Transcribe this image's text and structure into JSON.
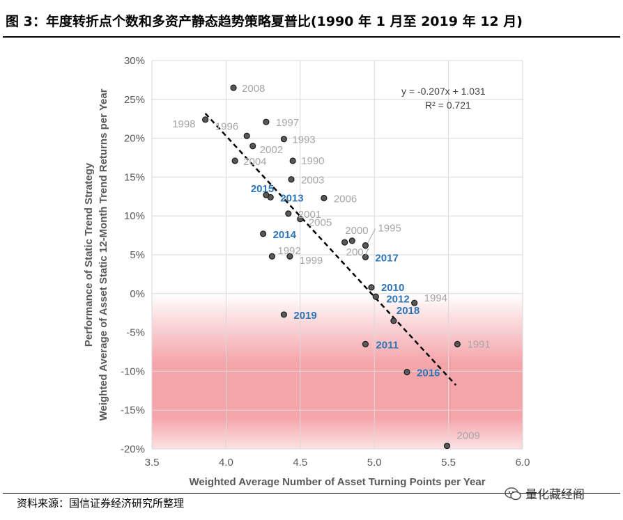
{
  "figure": {
    "title": "图 3：年度转折点个数和多资产静态趋势策略夏普比(1990 年 1 月至 2019 年 12 月)",
    "source": "资料来源：国信证券经济研究所整理",
    "watermark": "量化藏经阁"
  },
  "chart_data": {
    "type": "scatter",
    "title": "",
    "xlabel": "Weighted Average Number of Asset Turning Points per Year",
    "ylabel_lines": [
      "Performance of Static Trend Strategy",
      "Weighted Average of Asset Static 12-Month Trend Returns per Year"
    ],
    "xlim": [
      3.5,
      6.0
    ],
    "ylim": [
      -20,
      30
    ],
    "xticks": [
      3.5,
      4.0,
      4.5,
      5.0,
      5.5,
      6.0
    ],
    "xtick_labels": [
      "3.5",
      "4.0",
      "4.5",
      "5.0",
      "5.5",
      "6.0"
    ],
    "yticks": [
      30,
      25,
      20,
      15,
      10,
      5,
      0,
      -5,
      -10,
      -15,
      -20
    ],
    "ytick_labels": [
      "30%",
      "25%",
      "20%",
      "15%",
      "10%",
      "5%",
      "0%",
      "-5%",
      "-10%",
      "-15%",
      "-20%"
    ],
    "grid": true,
    "trendline": {
      "equation": "y = -0.207x + 1.031",
      "r2": "R² = 0.721",
      "x_start": 3.86,
      "x_end": 5.55,
      "slope": -0.207,
      "intercept": 1.031
    },
    "points": [
      {
        "label": "1990",
        "x": 4.45,
        "y": 17.1,
        "highlight": false
      },
      {
        "label": "1991",
        "x": 5.56,
        "y": -6.5,
        "highlight": false
      },
      {
        "label": "1992",
        "x": 4.31,
        "y": 4.8,
        "highlight": false
      },
      {
        "label": "1993",
        "x": 4.39,
        "y": 19.9,
        "highlight": false
      },
      {
        "label": "1994",
        "x": 5.27,
        "y": -1.2,
        "highlight": false
      },
      {
        "label": "1995",
        "x": 4.94,
        "y": 6.2,
        "highlight": false
      },
      {
        "label": "1996",
        "x": 4.14,
        "y": 20.3,
        "highlight": false
      },
      {
        "label": "1997",
        "x": 4.27,
        "y": 22.1,
        "highlight": false
      },
      {
        "label": "1998",
        "x": 3.86,
        "y": 22.4,
        "highlight": false
      },
      {
        "label": "1999",
        "x": 4.43,
        "y": 4.8,
        "highlight": false
      },
      {
        "label": "2000",
        "x": 4.85,
        "y": 6.8,
        "highlight": false
      },
      {
        "label": "2001",
        "x": 4.42,
        "y": 10.3,
        "highlight": false
      },
      {
        "label": "2002",
        "x": 4.18,
        "y": 19.0,
        "highlight": false
      },
      {
        "label": "2003",
        "x": 4.44,
        "y": 14.7,
        "highlight": false
      },
      {
        "label": "2004",
        "x": 4.06,
        "y": 17.1,
        "highlight": false
      },
      {
        "label": "2005",
        "x": 4.5,
        "y": 9.6,
        "highlight": false
      },
      {
        "label": "2006",
        "x": 4.66,
        "y": 12.3,
        "highlight": false
      },
      {
        "label": "2007",
        "x": 4.8,
        "y": 6.6,
        "highlight": false
      },
      {
        "label": "2008",
        "x": 4.05,
        "y": 26.5,
        "highlight": false
      },
      {
        "label": "2009",
        "x": 5.49,
        "y": -19.6,
        "highlight": false
      },
      {
        "label": "2010",
        "x": 4.98,
        "y": 0.8,
        "highlight": true
      },
      {
        "label": "2011",
        "x": 4.94,
        "y": -6.5,
        "highlight": true
      },
      {
        "label": "2012",
        "x": 5.01,
        "y": -0.4,
        "highlight": true
      },
      {
        "label": "2013",
        "x": 4.3,
        "y": 12.4,
        "highlight": true
      },
      {
        "label": "2014",
        "x": 4.25,
        "y": 7.7,
        "highlight": true
      },
      {
        "label": "2015",
        "x": 4.27,
        "y": 12.7,
        "highlight": true
      },
      {
        "label": "2016",
        "x": 5.22,
        "y": -10.1,
        "highlight": true
      },
      {
        "label": "2017",
        "x": 4.94,
        "y": 4.7,
        "highlight": true
      },
      {
        "label": "2018",
        "x": 5.13,
        "y": -3.5,
        "highlight": true
      },
      {
        "label": "2019",
        "x": 4.39,
        "y": -2.7,
        "highlight": true
      }
    ],
    "colors": {
      "point": "#595959",
      "gray_label": "#a6a6a6",
      "blue_label": "#2e75b6",
      "negative_zone": "#f4a0a6",
      "grid": "#d9d9d9"
    }
  }
}
